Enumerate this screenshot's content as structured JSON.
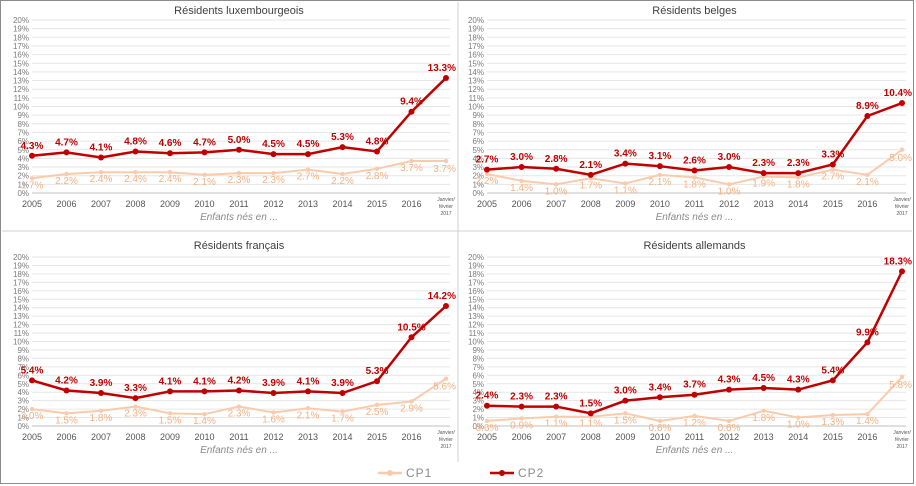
{
  "legend": {
    "items": [
      {
        "name": "CP1",
        "color": "#f8cbad"
      },
      {
        "name": "CP2",
        "color": "#c00000"
      }
    ]
  },
  "colors": {
    "cp1_line": "#f8cbad",
    "cp1_label": "#f4b183",
    "cp2": "#c00000",
    "grid": "#e6e6e6"
  },
  "chart_data": [
    {
      "type": "line",
      "title": "Résidents luxembourgeois",
      "xlabel": "Enfants nés en ...",
      "categories": [
        "2005",
        "2006",
        "2007",
        "2008",
        "2009",
        "2010",
        "2011",
        "2012",
        "2013",
        "2014",
        "2015",
        "2016",
        "Janvier/ février 2017"
      ],
      "ylim": [
        0,
        20
      ],
      "yticks": [
        "0%",
        "1%",
        "2%",
        "3%",
        "4%",
        "5%",
        "6%",
        "7%",
        "8%",
        "9%",
        "10%",
        "11%",
        "12%",
        "13%",
        "14%",
        "15%",
        "16%",
        "17%",
        "18%",
        "19%",
        "20%"
      ],
      "grid": true,
      "series": [
        {
          "name": "CP1",
          "values": [
            1.7,
            2.2,
            2.4,
            2.4,
            2.4,
            2.1,
            2.3,
            2.3,
            2.7,
            2.2,
            2.8,
            3.7,
            3.7
          ],
          "labels": [
            "1.7%",
            "2.2%",
            "2.4%",
            "2.4%",
            "2.4%",
            "2.1%",
            "2.3%",
            "2.3%",
            "2.7%",
            "2.2%",
            "2.8%",
            "3.7%",
            "3.7%"
          ]
        },
        {
          "name": "CP2",
          "values": [
            4.3,
            4.7,
            4.1,
            4.8,
            4.6,
            4.7,
            5.0,
            4.5,
            4.5,
            5.3,
            4.8,
            9.4,
            13.3
          ],
          "labels": [
            "4.3%",
            "4.7%",
            "4.1%",
            "4.8%",
            "4.6%",
            "4.7%",
            "5.0%",
            "4.5%",
            "4.5%",
            "5.3%",
            "4.8%",
            "9.4%",
            "13.3%"
          ]
        }
      ]
    },
    {
      "type": "line",
      "title": "Résidents belges",
      "xlabel": "Enfants nés en ...",
      "categories": [
        "2005",
        "2006",
        "2007",
        "2008",
        "2009",
        "2010",
        "2011",
        "2012",
        "2013",
        "2014",
        "2015",
        "2016",
        "Janvier/ février 2017"
      ],
      "ylim": [
        0,
        20
      ],
      "yticks": [
        "0%",
        "1%",
        "2%",
        "3%",
        "4%",
        "5%",
        "6%",
        "7%",
        "8%",
        "9%",
        "10%",
        "11%",
        "12%",
        "13%",
        "14%",
        "15%",
        "16%",
        "17%",
        "18%",
        "19%",
        "20%"
      ],
      "grid": true,
      "series": [
        {
          "name": "CP1",
          "values": [
            2.2,
            1.4,
            1.0,
            1.7,
            1.1,
            2.1,
            1.8,
            1.0,
            1.9,
            1.8,
            2.7,
            2.1,
            5.0
          ],
          "labels": [
            "2.2%",
            "1.4%",
            "1.0%",
            "1.7%",
            "1.1%",
            "2.1%",
            "1.8%",
            "1.0%",
            "1.9%",
            "1.8%",
            "2.7%",
            "2.1%",
            "5.0%"
          ]
        },
        {
          "name": "CP2",
          "values": [
            2.7,
            3.0,
            2.8,
            2.1,
            3.4,
            3.1,
            2.6,
            3.0,
            2.3,
            2.3,
            3.3,
            8.9,
            10.4
          ],
          "labels": [
            "2.7%",
            "3.0%",
            "2.8%",
            "2.1%",
            "3.4%",
            "3.1%",
            "2.6%",
            "3.0%",
            "2.3%",
            "2.3%",
            "3.3%",
            "8.9%",
            "10.4%"
          ]
        }
      ]
    },
    {
      "type": "line",
      "title": "Résidents français",
      "xlabel": "Enfants nés en ...",
      "categories": [
        "2005",
        "2006",
        "2007",
        "2008",
        "2009",
        "2010",
        "2011",
        "2012",
        "2013",
        "2014",
        "2015",
        "2016",
        "Janvier/ février 2017"
      ],
      "ylim": [
        0,
        20
      ],
      "yticks": [
        "0%",
        "1%",
        "2%",
        "3%",
        "4%",
        "5%",
        "6%",
        "7%",
        "8%",
        "9%",
        "10%",
        "11%",
        "12%",
        "13%",
        "14%",
        "15%",
        "16%",
        "17%",
        "18%",
        "19%",
        "20%"
      ],
      "grid": true,
      "series": [
        {
          "name": "CP1",
          "values": [
            2.0,
            1.5,
            1.8,
            2.3,
            1.5,
            1.4,
            2.3,
            1.6,
            2.1,
            1.7,
            2.5,
            2.9,
            5.6
          ],
          "labels": [
            "2.0%",
            "1.5%",
            "1.8%",
            "2.3%",
            "1.5%",
            "1.4%",
            "2.3%",
            "1.6%",
            "2.1%",
            "1.7%",
            "2.5%",
            "2.9%",
            "5.6%"
          ]
        },
        {
          "name": "CP2",
          "values": [
            5.4,
            4.2,
            3.9,
            3.3,
            4.1,
            4.1,
            4.2,
            3.9,
            4.1,
            3.9,
            5.3,
            10.5,
            14.2
          ],
          "labels": [
            "5.4%",
            "4.2%",
            "3.9%",
            "3.3%",
            "4.1%",
            "4.1%",
            "4.2%",
            "3.9%",
            "4.1%",
            "3.9%",
            "5.3%",
            "10.5%",
            "14.2%"
          ]
        }
      ]
    },
    {
      "type": "line",
      "title": "Résidents allemands",
      "xlabel": "Enfants nés en ...",
      "categories": [
        "2005",
        "2006",
        "2007",
        "2008",
        "2009",
        "2010",
        "2011",
        "2012",
        "2013",
        "2014",
        "2015",
        "2016",
        "Janvier/ février 2017"
      ],
      "ylim": [
        0,
        20
      ],
      "yticks": [
        "0%",
        "1%",
        "2%",
        "3%",
        "4%",
        "5%",
        "6%",
        "7%",
        "8%",
        "9%",
        "10%",
        "11%",
        "12%",
        "13%",
        "14%",
        "15%",
        "16%",
        "17%",
        "18%",
        "19%",
        "20%"
      ],
      "grid": true,
      "series": [
        {
          "name": "CP1",
          "values": [
            0.6,
            0.9,
            1.1,
            1.1,
            1.5,
            0.6,
            1.2,
            0.6,
            1.8,
            1.0,
            1.3,
            1.4,
            5.8
          ],
          "labels": [
            "0.6%",
            "0.9%",
            "1.1%",
            "1.1%",
            "1.5%",
            "0.6%",
            "1.2%",
            "0.6%",
            "1.8%",
            "1.0%",
            "1.3%",
            "1.4%",
            "5.8%"
          ]
        },
        {
          "name": "CP2",
          "values": [
            2.4,
            2.3,
            2.3,
            1.5,
            3.0,
            3.4,
            3.7,
            4.3,
            4.5,
            4.3,
            5.4,
            9.9,
            18.3
          ],
          "labels": [
            "2.4%",
            "2.3%",
            "2.3%",
            "1.5%",
            "3.0%",
            "3.4%",
            "3.7%",
            "4.3%",
            "4.5%",
            "4.3%",
            "5.4%",
            "9.9%",
            "18.3%"
          ]
        }
      ]
    }
  ]
}
